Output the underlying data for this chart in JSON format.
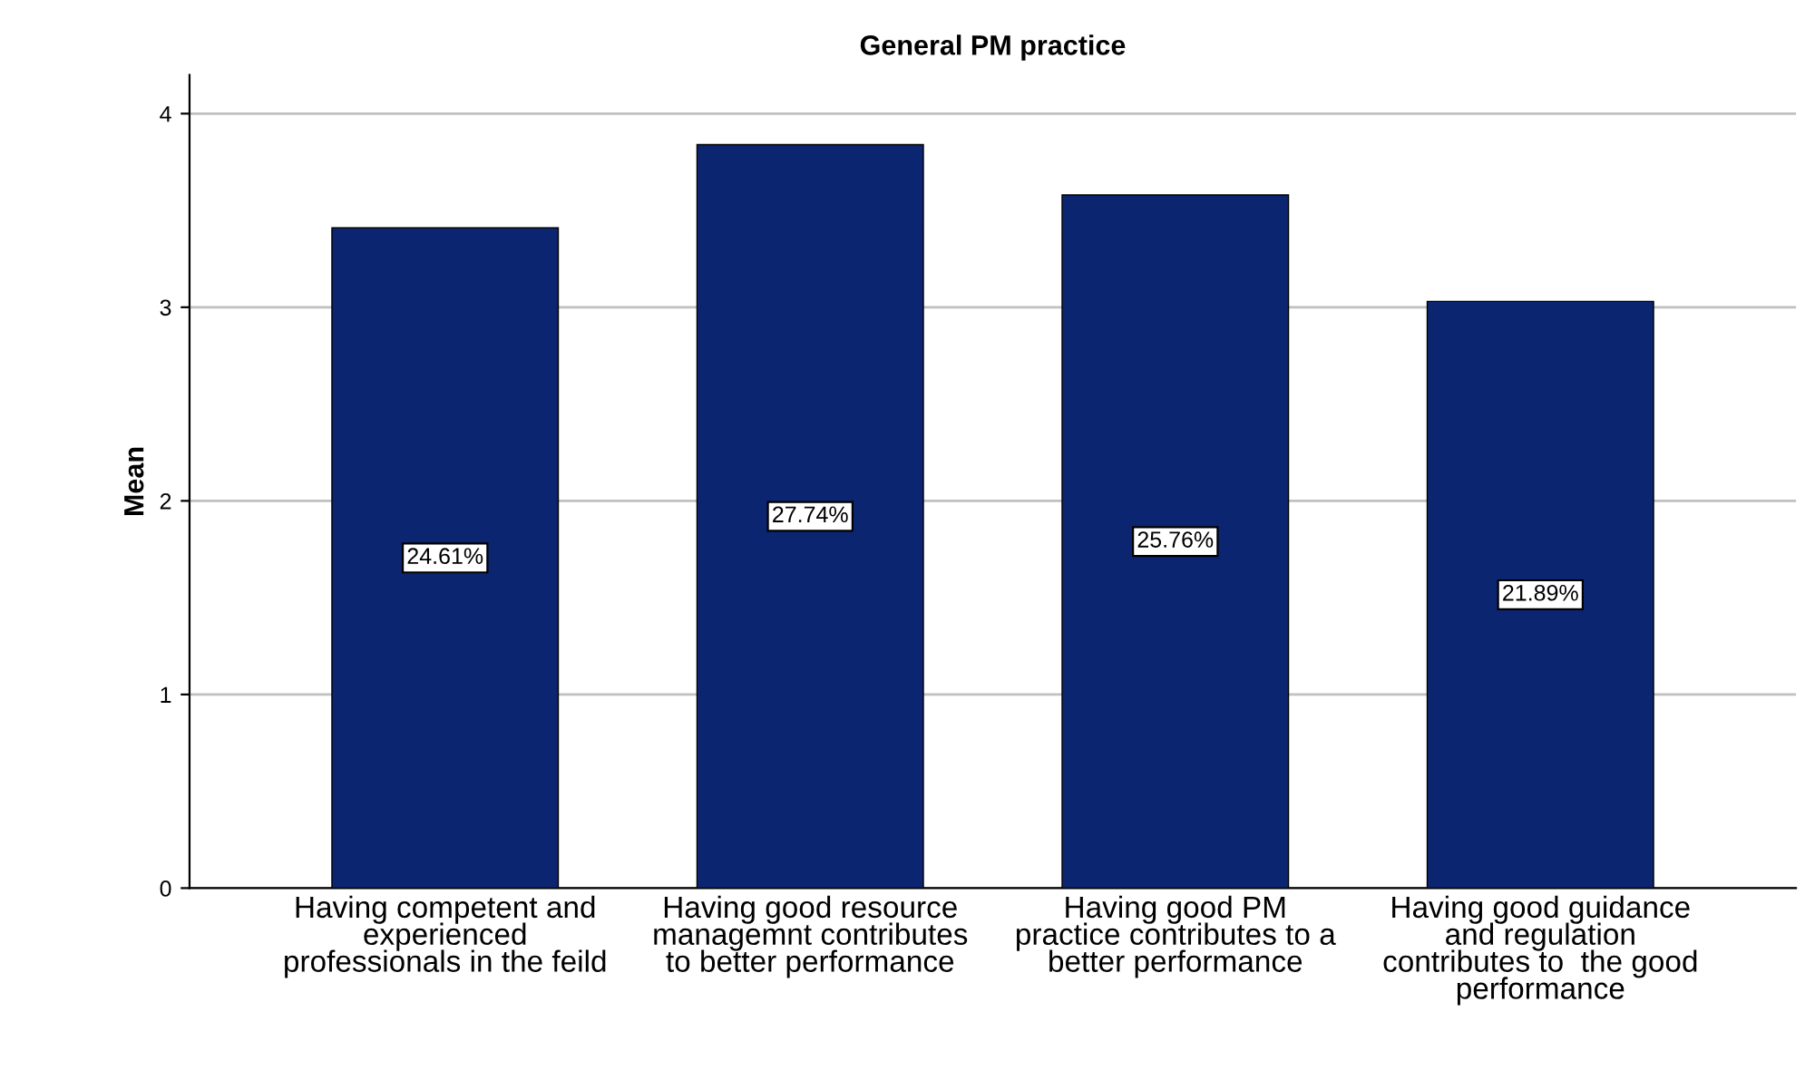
{
  "chart_data": {
    "type": "bar",
    "title": "General PM practice",
    "ylabel": "Mean",
    "categories": [
      "Having competent and\nexperienced\nprofessionals in the feild",
      "Having good resource\nmanagemnt contributes\nto better performance",
      "Having good PM\npractice contributes to a\nbetter performance",
      "Having good guidance\nand regulation\ncontributes to  the good\nperformance"
    ],
    "values": [
      3.41,
      3.84,
      3.58,
      3.03
    ],
    "annotations": [
      "24.61%",
      "27.74%",
      "25.76%",
      "21.89%"
    ],
    "color": "#0c2571",
    "ylim": [
      0,
      4.2
    ],
    "yticks": [
      0,
      1,
      2,
      3,
      4
    ],
    "grid": "y"
  }
}
